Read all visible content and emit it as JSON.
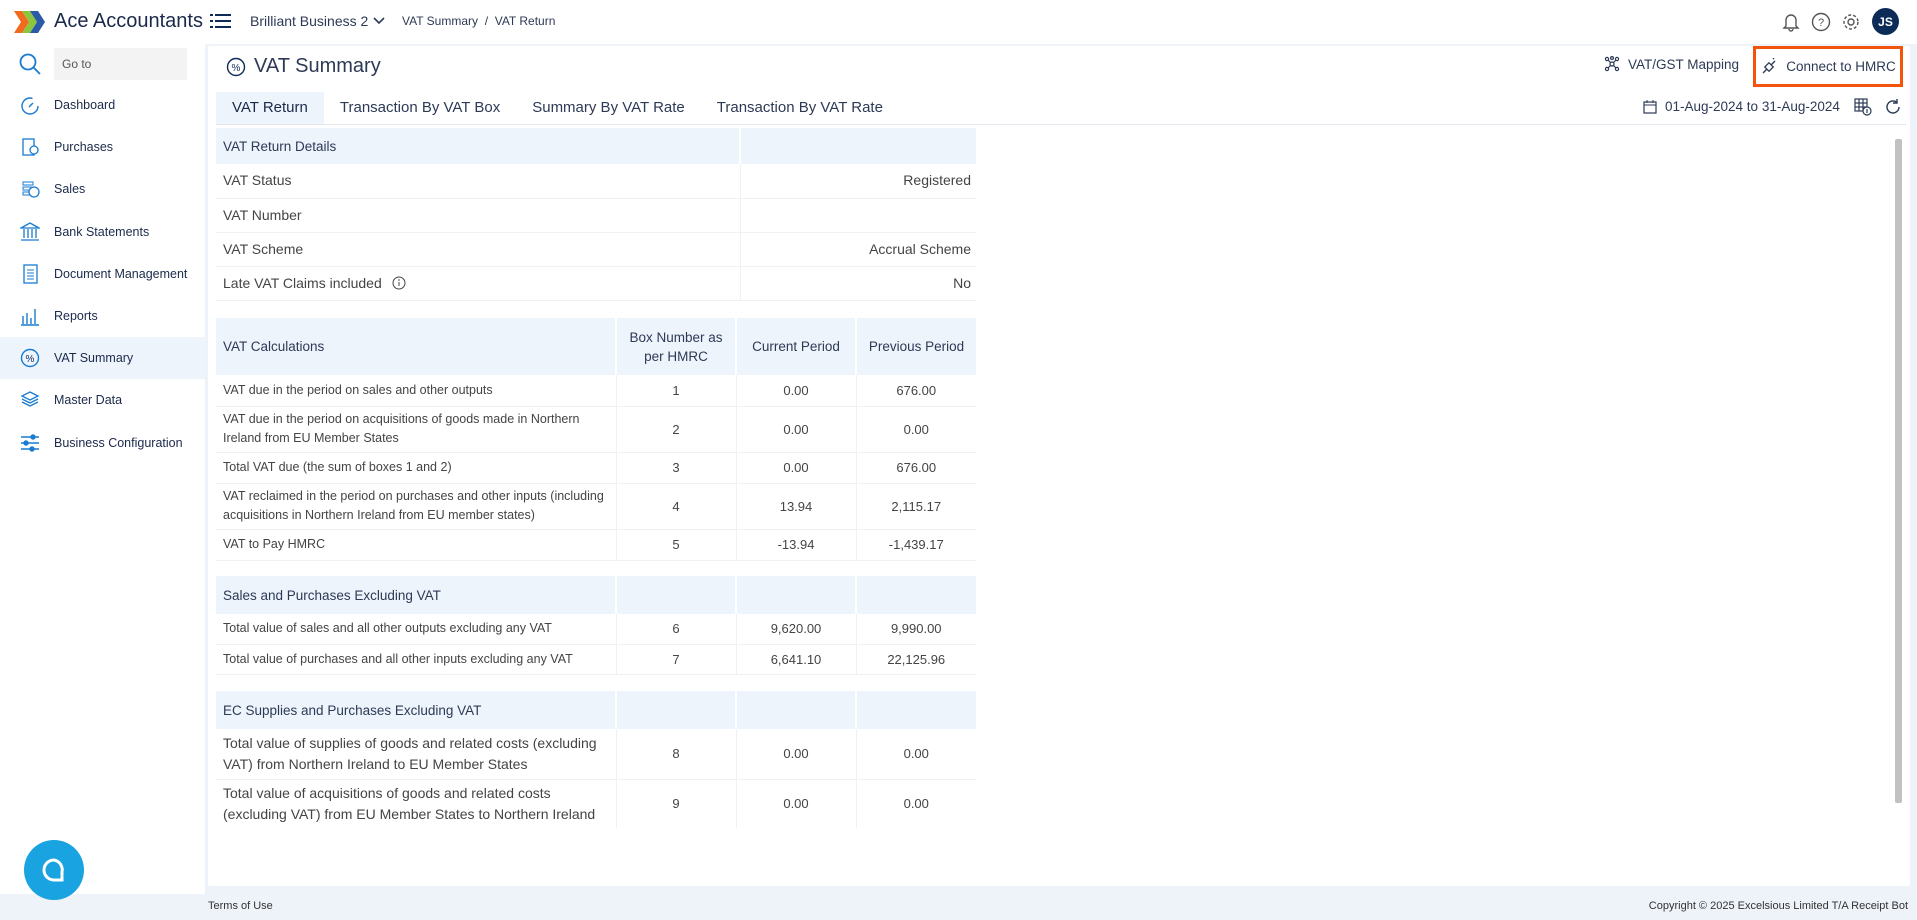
{
  "header": {
    "brand": "Ace Accountants",
    "business": "Brilliant Business 2",
    "breadcrumb": [
      "VAT Summary",
      "/",
      "VAT Return"
    ],
    "avatar": "JS"
  },
  "sidebar": {
    "search_placeholder": "Go to",
    "items": [
      {
        "label": "Dashboard",
        "icon": "dashboard-icon"
      },
      {
        "label": "Purchases",
        "icon": "purchases-icon"
      },
      {
        "label": "Sales",
        "icon": "sales-icon"
      },
      {
        "label": "Bank Statements",
        "icon": "bank-icon"
      },
      {
        "label": "Document Management",
        "icon": "document-icon"
      },
      {
        "label": "Reports",
        "icon": "reports-icon"
      },
      {
        "label": "VAT Summary",
        "icon": "percent-icon",
        "active": true
      },
      {
        "label": "Master Data",
        "icon": "layers-icon"
      },
      {
        "label": "Business Configuration",
        "icon": "sliders-icon"
      }
    ]
  },
  "page": {
    "title": "VAT Summary",
    "mapping": "VAT/GST Mapping",
    "connect": "Connect to HMRC",
    "date_range": "01-Aug-2024 to 31-Aug-2024",
    "tabs": [
      "VAT Return",
      "Transaction By VAT Box",
      "Summary By VAT Rate",
      "Transaction By VAT Rate"
    ]
  },
  "details": {
    "header": "VAT Return Details",
    "rows": [
      {
        "label": "VAT Status",
        "value": "Registered"
      },
      {
        "label": "VAT Number",
        "value": ""
      },
      {
        "label": "VAT Scheme",
        "value": "Accrual Scheme"
      },
      {
        "label": "Late VAT Claims included",
        "value": "No",
        "info": true
      }
    ]
  },
  "sections": [
    {
      "header": [
        "VAT Calculations",
        "Box Number as per HMRC",
        "Current Period",
        "Previous Period"
      ],
      "rows": [
        [
          "VAT due in the period on sales and other outputs",
          "1",
          "0.00",
          "676.00"
        ],
        [
          "VAT due in the period on acquisitions of goods made in Northern Ireland from EU Member States",
          "2",
          "0.00",
          "0.00"
        ],
        [
          "Total VAT due (the sum of boxes 1 and 2)",
          "3",
          "0.00",
          "676.00"
        ],
        [
          "VAT reclaimed in the period on purchases and other inputs (including acquisitions in Northern Ireland from EU member states)",
          "4",
          "13.94",
          "2,115.17"
        ],
        [
          "VAT to Pay HMRC",
          "5",
          "-13.94",
          "-1,439.17"
        ]
      ]
    },
    {
      "header": [
        "Sales and Purchases Excluding VAT",
        "",
        "",
        ""
      ],
      "rows": [
        [
          "Total value of sales and all other outputs excluding any VAT",
          "6",
          "9,620.00",
          "9,990.00"
        ],
        [
          "Total value of purchases and all other inputs excluding any VAT",
          "7",
          "6,641.10",
          "22,125.96"
        ]
      ]
    },
    {
      "header": [
        "EC Supplies and Purchases Excluding VAT",
        "",
        "",
        ""
      ],
      "rows": [
        [
          "Total value of supplies of goods and related costs (excluding VAT) from Northern Ireland to EU Member States",
          "8",
          "0.00",
          "0.00"
        ],
        [
          "Total value of acquisitions of goods and related costs (excluding VAT) from EU Member States to Northern Ireland",
          "9",
          "0.00",
          "0.00"
        ]
      ]
    }
  ],
  "footer": {
    "terms": "Terms of Use",
    "copyright": "Copyright © 2025 Excelsious Limited T/A Receipt Bot"
  },
  "colors": {
    "accent": "#0d2b57",
    "highlight": "#f2530d",
    "header_bg": "#eef4fc",
    "chat": "#19a3e0"
  }
}
